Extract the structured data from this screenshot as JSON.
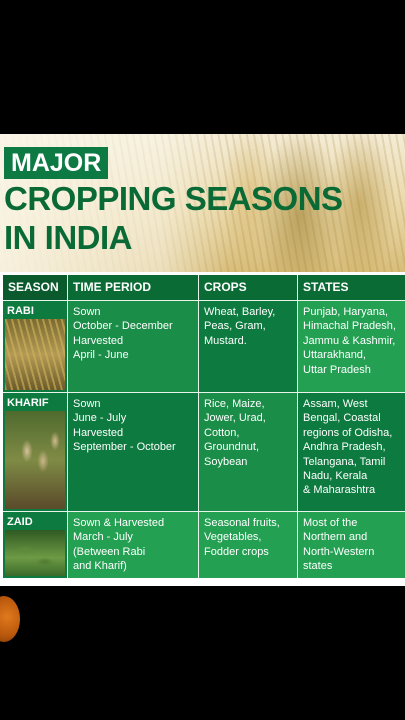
{
  "header": {
    "badge": "MAJOR",
    "title_line1": "CROPPING SEASONS",
    "title_line2": "IN INDIA"
  },
  "table": {
    "columns": [
      "SEASON",
      "TIME PERIOD",
      "CROPS",
      "STATES"
    ],
    "rows": [
      {
        "season": "RABI",
        "time_lines": [
          "Sown",
          "October - December",
          "Harvested",
          "April - June"
        ],
        "crop_lines": [
          "Wheat, Barley,",
          "Peas, Gram,",
          "Mustard."
        ],
        "state_lines": [
          "Punjab, Haryana,",
          "Himachal Pradesh,",
          "Jammu & Kashmir,",
          "Uttarakhand,",
          "Uttar Pradesh"
        ]
      },
      {
        "season": "KHARIF",
        "time_lines": [
          "Sown",
          "June - July",
          "Harvested",
          "September - October"
        ],
        "crop_lines": [
          "Rice, Maize,",
          "Jower, Urad,",
          "Cotton,",
          "Groundnut,",
          "Soybean"
        ],
        "state_lines": [
          "Assam, West",
          "Bengal, Coastal",
          "regions of Odisha,",
          "Andhra Pradesh,",
          "Telangana, Tamil",
          "Nadu, Kerala",
          "& Maharashtra"
        ]
      },
      {
        "season": "ZAID",
        "time_lines": [
          "Sown & Harvested",
          "March - July",
          "(Between Rabi",
          "and Kharif)"
        ],
        "crop_lines": [
          "Seasonal fruits,",
          "Vegetables,",
          "Fodder crops"
        ],
        "state_lines": [
          "Most of the",
          "Northern and",
          "North-Western",
          "states"
        ]
      }
    ]
  },
  "icons": {
    "floating_button": "orange-circle-icon"
  },
  "colors": {
    "brand_green": "#0a6a36",
    "table_green": "#1f8f49"
  }
}
